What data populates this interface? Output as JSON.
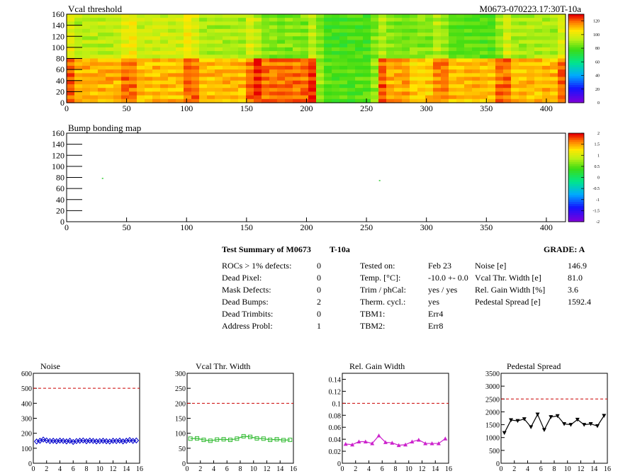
{
  "module_id": "M0673-070223.17:30T-10a",
  "maps": [
    {
      "title": "Vcal threshold",
      "xticks": [
        "0",
        "50",
        "100",
        "150",
        "200",
        "250",
        "300",
        "350",
        "400"
      ],
      "yticks": [
        "0",
        "20",
        "40",
        "60",
        "80",
        "100",
        "120",
        "140",
        "160"
      ],
      "palette_ticks": [
        "120",
        "100",
        "80",
        "60",
        "40",
        "20",
        "0"
      ],
      "xlim": [
        0,
        416
      ],
      "ylim": [
        0,
        160
      ],
      "palette_range": [
        0,
        130
      ]
    },
    {
      "title": "Bump bonding map",
      "xticks": [
        "0",
        "50",
        "100",
        "150",
        "200",
        "250",
        "300",
        "350",
        "400"
      ],
      "yticks": [
        "0",
        "20",
        "40",
        "60",
        "80",
        "100",
        "120",
        "140",
        "160"
      ],
      "palette_ticks": [
        "2",
        "1.5",
        "1",
        "0.5",
        "0",
        "-0.5",
        "-1",
        "-1.5",
        "-2"
      ],
      "xlim": [
        0,
        416
      ],
      "ylim": [
        0,
        160
      ],
      "palette_range": [
        -2,
        2
      ],
      "points": [
        {
          "x": 30,
          "y": 78
        },
        {
          "x": 261,
          "y": 74
        }
      ]
    }
  ],
  "summary": {
    "title": "Test Summary of M0673",
    "temp_label": "T-10a",
    "grade": "GRADE:  A",
    "left": [
      {
        "label": "ROCs > 1% defects:",
        "value": "0"
      },
      {
        "label": "Dead Pixel:",
        "value": "0"
      },
      {
        "label": "Mask Defects:",
        "value": "0"
      },
      {
        "label": "Dead Bumps:",
        "value": "2"
      },
      {
        "label": "Dead Trimbits:",
        "value": "0"
      },
      {
        "label": "Address Probl:",
        "value": "1"
      }
    ],
    "middle": [
      {
        "label": "Tested on:",
        "value": "Feb 23"
      },
      {
        "label": "Temp. [°C]:",
        "value": "-10.0 +- 0.0"
      },
      {
        "label": "Trim / phCal:",
        "value": "yes / yes"
      },
      {
        "label": "Therm. cycl.:",
        "value": "yes"
      },
      {
        "label": "TBM1:",
        "value": "Err4"
      },
      {
        "label": "TBM2:",
        "value": "Err8"
      }
    ],
    "right": [
      {
        "label": "Noise [e]",
        "value": "146.9"
      },
      {
        "label": "Vcal Thr. Width [e]",
        "value": "81.0"
      },
      {
        "label": "Rel. Gain Width [%]",
        "value": "3.6"
      },
      {
        "label": "Pedestal Spread [e]",
        "value": "1592.4"
      }
    ]
  },
  "chart_data": [
    {
      "type": "line",
      "title": "Noise",
      "xlim": [
        0,
        16
      ],
      "ylim": [
        0,
        600
      ],
      "xticks": [
        "0",
        "2",
        "4",
        "6",
        "8",
        "10",
        "12",
        "14",
        "16"
      ],
      "yticks": [
        "0",
        "100",
        "200",
        "300",
        "400",
        "500",
        "600"
      ],
      "cut": 500,
      "color": "#0000cc",
      "marker": "diamond",
      "x": [
        0.5,
        1,
        1.5,
        2,
        2.5,
        3,
        3.5,
        4,
        4.5,
        5,
        5.5,
        6,
        6.5,
        7,
        7.5,
        8,
        8.5,
        9,
        9.5,
        10,
        10.5,
        11,
        11.5,
        12,
        12.5,
        13,
        13.5,
        14,
        14.5,
        15,
        15.5
      ],
      "values": [
        145,
        150,
        158,
        152,
        148,
        150,
        147,
        151,
        149,
        146,
        150,
        142,
        148,
        150,
        152,
        147,
        151,
        149,
        146,
        148,
        150,
        147,
        145,
        150,
        148,
        151,
        146,
        150,
        155,
        149,
        152
      ]
    },
    {
      "type": "line",
      "title": "Vcal Thr. Width",
      "xlim": [
        0,
        16
      ],
      "ylim": [
        0,
        300
      ],
      "xticks": [
        "0",
        "2",
        "4",
        "6",
        "8",
        "10",
        "12",
        "14",
        "16"
      ],
      "yticks": [
        "0",
        "50",
        "100",
        "150",
        "200",
        "250",
        "300"
      ],
      "cut": 200,
      "color": "#33bb33",
      "marker": "square",
      "x": [
        0.5,
        1.5,
        2.5,
        3.5,
        4.5,
        5.5,
        6.5,
        7.5,
        8.5,
        9.5,
        10.5,
        11.5,
        12.5,
        13.5,
        14.5,
        15.5
      ],
      "values": [
        82,
        83,
        78,
        75,
        79,
        80,
        78,
        82,
        90,
        88,
        83,
        82,
        78,
        80,
        77,
        78
      ]
    },
    {
      "type": "line",
      "title": "Rel. Gain Width",
      "xlim": [
        0,
        16
      ],
      "ylim": [
        0,
        0.15
      ],
      "xticks": [
        "0",
        "2",
        "4",
        "6",
        "8",
        "10",
        "12",
        "14",
        "16"
      ],
      "yticks": [
        "0",
        "0.02",
        "0.04",
        "0.06",
        "0.08",
        "0.1",
        "0.12",
        "0.14"
      ],
      "cut": 0.1,
      "color": "#cc22cc",
      "marker": "triangle",
      "x": [
        0.5,
        1.5,
        2.5,
        3.5,
        4.5,
        5.5,
        6.5,
        7.5,
        8.5,
        9.5,
        10.5,
        11.5,
        12.5,
        13.5,
        14.5,
        15.5
      ],
      "values": [
        0.032,
        0.031,
        0.036,
        0.036,
        0.033,
        0.046,
        0.035,
        0.034,
        0.03,
        0.031,
        0.036,
        0.039,
        0.033,
        0.033,
        0.033,
        0.041
      ]
    },
    {
      "type": "line",
      "title": "Pedestal Spread",
      "xlim": [
        0,
        16
      ],
      "ylim": [
        0,
        3500
      ],
      "xticks": [
        "0",
        "2",
        "4",
        "6",
        "8",
        "10",
        "12",
        "14",
        "16"
      ],
      "yticks": [
        "0",
        "500",
        "1000",
        "1500",
        "2000",
        "2500",
        "3000",
        "3500"
      ],
      "cut": 2500,
      "color": "#000000",
      "marker": "triangle-down",
      "x": [
        0.5,
        1.5,
        2.5,
        3.5,
        4.5,
        5.5,
        6.5,
        7.5,
        8.5,
        9.5,
        10.5,
        11.5,
        12.5,
        13.5,
        14.5,
        15.5
      ],
      "values": [
        1180,
        1680,
        1650,
        1720,
        1410,
        1900,
        1300,
        1800,
        1840,
        1530,
        1500,
        1700,
        1500,
        1530,
        1450,
        1850
      ]
    }
  ]
}
